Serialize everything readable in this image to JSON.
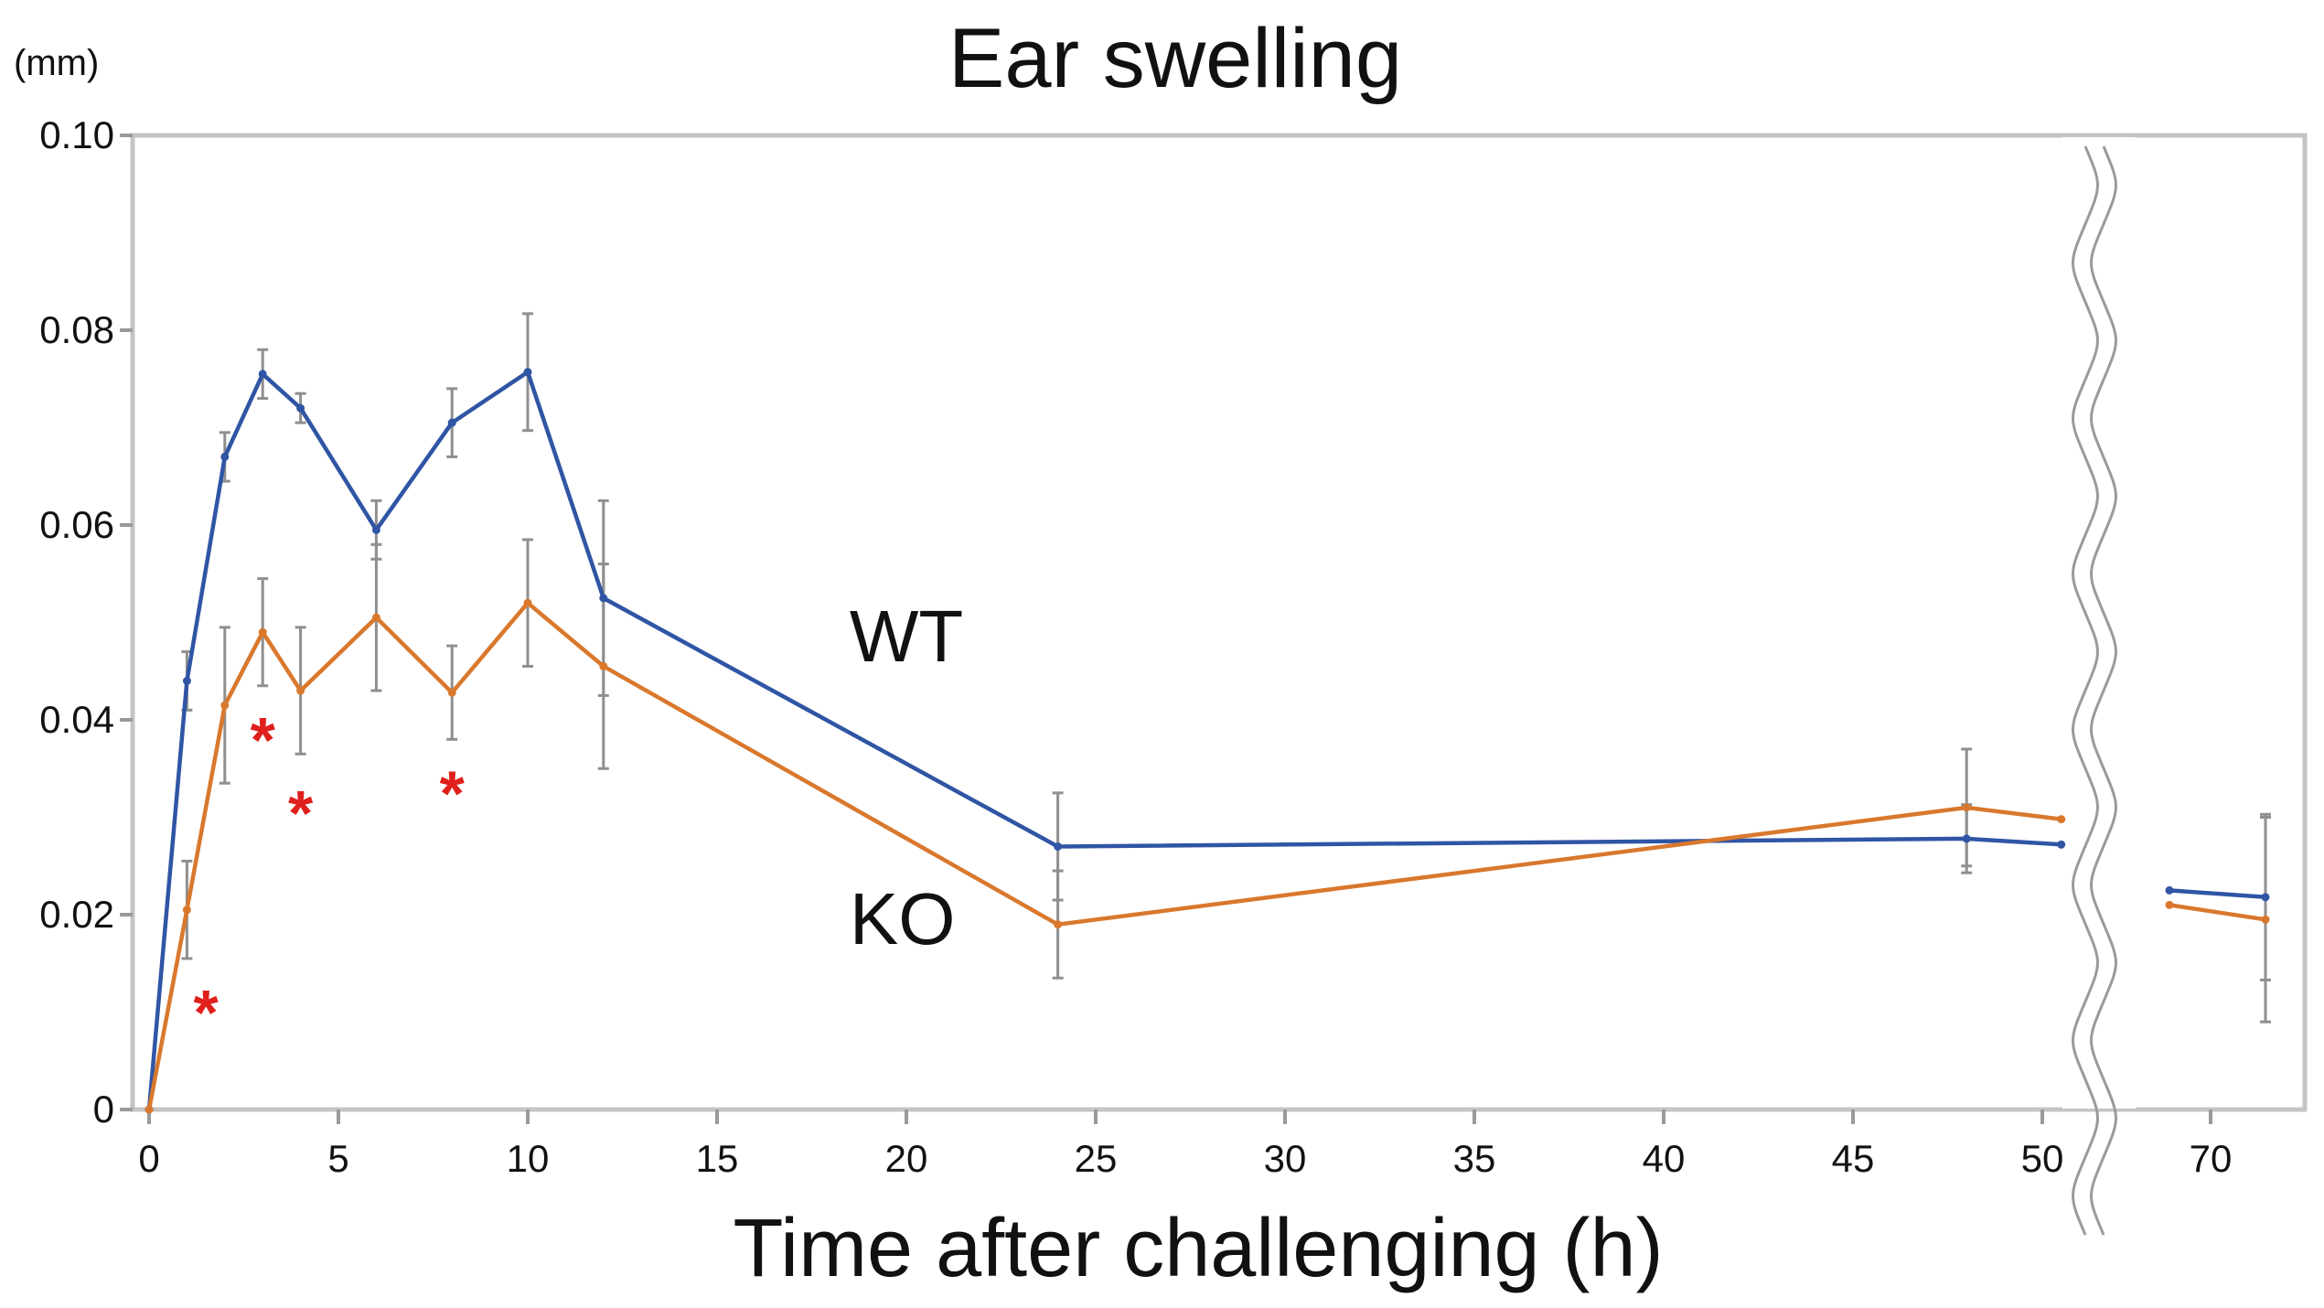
{
  "chart_data": {
    "type": "line",
    "title": "Ear swelling",
    "xlabel": "Time after challenging (h)",
    "ylabel": "(mm)",
    "ylim": [
      0,
      0.1
    ],
    "yticks": [
      {
        "value": 0,
        "label": "0"
      },
      {
        "value": 0.02,
        "label": "0.02"
      },
      {
        "value": 0.04,
        "label": "0.04"
      },
      {
        "value": 0.06,
        "label": "0.06"
      },
      {
        "value": 0.08,
        "label": "0.08"
      },
      {
        "value": 0.1,
        "label": "0.10"
      }
    ],
    "xlim": [
      0,
      57
    ],
    "xticks_main": [
      0,
      5,
      10,
      15,
      20,
      25,
      30,
      35,
      40,
      45,
      50
    ],
    "x_break": {
      "after": 51,
      "resume": 68
    },
    "xlim_right": [
      68,
      74
    ],
    "xticks_right": [
      70
    ],
    "series": [
      {
        "name": "WT",
        "label": "WT",
        "color": "#2f55a4",
        "segments": [
          [
            {
              "x": 0,
              "y": 0,
              "err": 0
            },
            {
              "x": 1,
              "y": 0.044,
              "err": 0.003
            },
            {
              "x": 2,
              "y": 0.067,
              "err": 0.0025
            },
            {
              "x": 3,
              "y": 0.0755,
              "err": 0.0025
            },
            {
              "x": 4,
              "y": 0.072,
              "err": 0.0015
            },
            {
              "x": 6,
              "y": 0.0595,
              "err": 0.003
            },
            {
              "x": 8,
              "y": 0.0705,
              "err": 0.0035
            },
            {
              "x": 10,
              "y": 0.0757,
              "err": 0.006
            },
            {
              "x": 12,
              "y": 0.0525,
              "err": 0.01
            },
            {
              "x": 24,
              "y": 0.027,
              "err": 0.0055
            },
            {
              "x": 48,
              "y": 0.0278,
              "err": 0.0035
            },
            {
              "x": 50.5,
              "y": 0.0272,
              "err": 0
            }
          ],
          [
            {
              "x": 68.5,
              "y": 0.0225,
              "err": 0
            },
            {
              "x": 72,
              "y": 0.0218,
              "err": 0.0085
            }
          ]
        ]
      },
      {
        "name": "KO",
        "label": "KO",
        "color": "#d9782d",
        "segments": [
          [
            {
              "x": 0,
              "y": 0,
              "err": 0
            },
            {
              "x": 1,
              "y": 0.0205,
              "err": 0.005
            },
            {
              "x": 2,
              "y": 0.0415,
              "err": 0.008
            },
            {
              "x": 3,
              "y": 0.049,
              "err": 0.0055
            },
            {
              "x": 4,
              "y": 0.043,
              "err": 0.0065
            },
            {
              "x": 6,
              "y": 0.0505,
              "err": 0.0075
            },
            {
              "x": 8,
              "y": 0.0428,
              "err": 0.0048
            },
            {
              "x": 10,
              "y": 0.052,
              "err": 0.0065
            },
            {
              "x": 12,
              "y": 0.0455,
              "err": 0.0105
            },
            {
              "x": 24,
              "y": 0.019,
              "err": 0.0055
            },
            {
              "x": 48,
              "y": 0.031,
              "err": 0.006
            },
            {
              "x": 50.5,
              "y": 0.0298,
              "err": 0
            }
          ],
          [
            {
              "x": 68.5,
              "y": 0.021,
              "err": 0
            },
            {
              "x": 72,
              "y": 0.0195,
              "err": 0.0105
            }
          ]
        ]
      }
    ],
    "series_label_positions": [
      {
        "series": "WT",
        "x": 18.5,
        "y": 0.046
      },
      {
        "series": "KO",
        "x": 18.5,
        "y": 0.017
      }
    ],
    "significance_marker": "*",
    "significance_color": "#e0201c",
    "significance_marks": [
      {
        "x": 1.5,
        "y": 0.0105
      },
      {
        "x": 3,
        "y": 0.0385
      },
      {
        "x": 4,
        "y": 0.031
      },
      {
        "x": 8,
        "y": 0.033
      }
    ],
    "grid": false,
    "legend": "inline labels"
  }
}
